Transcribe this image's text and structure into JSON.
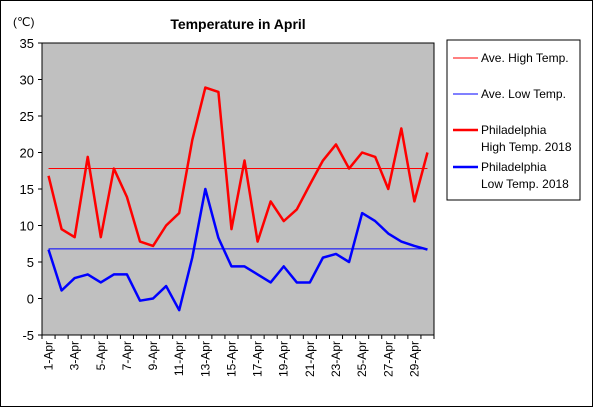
{
  "chart_data": {
    "type": "line",
    "title": "Temperature in April",
    "unit_label": "(℃)",
    "xlabel": "",
    "ylabel": "",
    "ylim": [
      -5,
      35
    ],
    "yticks": [
      35,
      30,
      25,
      20,
      15,
      10,
      5,
      0,
      -5
    ],
    "grid": false,
    "plot_background": "#c0c0c0",
    "legend_position": "right",
    "x": [
      1,
      2,
      3,
      4,
      5,
      6,
      7,
      8,
      9,
      10,
      11,
      12,
      13,
      14,
      15,
      16,
      17,
      18,
      19,
      20,
      21,
      22,
      23,
      24,
      25,
      26,
      27,
      28,
      29,
      30
    ],
    "x_tick_labels": [
      "1-Apr",
      "3-Apr",
      "5-Apr",
      "7-Apr",
      "9-Apr",
      "11-Apr",
      "13-Apr",
      "15-Apr",
      "17-Apr",
      "19-Apr",
      "21-Apr",
      "23-Apr",
      "25-Apr",
      "27-Apr",
      "29-Apr"
    ],
    "series": [
      {
        "name": "Ave. High Temp.",
        "color": "#ff0000",
        "line": "thin",
        "values": [
          17.8,
          17.8,
          17.8,
          17.8,
          17.8,
          17.8,
          17.8,
          17.8,
          17.8,
          17.8,
          17.8,
          17.8,
          17.8,
          17.8,
          17.8,
          17.8,
          17.8,
          17.8,
          17.8,
          17.8,
          17.8,
          17.8,
          17.8,
          17.8,
          17.8,
          17.8,
          17.8,
          17.8,
          17.8,
          17.8
        ]
      },
      {
        "name": "Ave. Low Temp.",
        "color": "#0000ff",
        "line": "thin",
        "values": [
          6.8,
          6.8,
          6.8,
          6.8,
          6.8,
          6.8,
          6.8,
          6.8,
          6.8,
          6.8,
          6.8,
          6.8,
          6.8,
          6.8,
          6.8,
          6.8,
          6.8,
          6.8,
          6.8,
          6.8,
          6.8,
          6.8,
          6.8,
          6.8,
          6.8,
          6.8,
          6.8,
          6.8,
          6.8,
          6.8
        ]
      },
      {
        "name": "Philadelphia High Temp. 2018",
        "legend_lines": [
          "Philadelphia",
          "High Temp. 2018"
        ],
        "color": "#ff0000",
        "line": "thick",
        "values": [
          16.8,
          9.5,
          8.4,
          19.4,
          8.4,
          17.8,
          13.9,
          7.8,
          7.2,
          10.0,
          11.7,
          21.7,
          28.9,
          28.3,
          9.5,
          18.9,
          7.8,
          13.3,
          10.6,
          12.2,
          15.6,
          18.9,
          21.1,
          17.8,
          20.0,
          19.4,
          15.0,
          23.3,
          13.3,
          20.0
        ]
      },
      {
        "name": "Philadelphia Low Temp. 2018",
        "legend_lines": [
          "Philadelphia",
          "Low Temp. 2018"
        ],
        "color": "#0000ff",
        "line": "thick",
        "values": [
          6.7,
          1.1,
          2.8,
          3.3,
          2.2,
          3.3,
          3.3,
          -0.3,
          0.0,
          1.7,
          -1.6,
          5.6,
          15.0,
          8.3,
          4.4,
          4.4,
          3.3,
          2.2,
          4.4,
          2.2,
          2.2,
          5.6,
          6.1,
          5.0,
          11.7,
          10.6,
          8.9,
          7.8,
          7.2,
          6.7
        ]
      }
    ]
  }
}
